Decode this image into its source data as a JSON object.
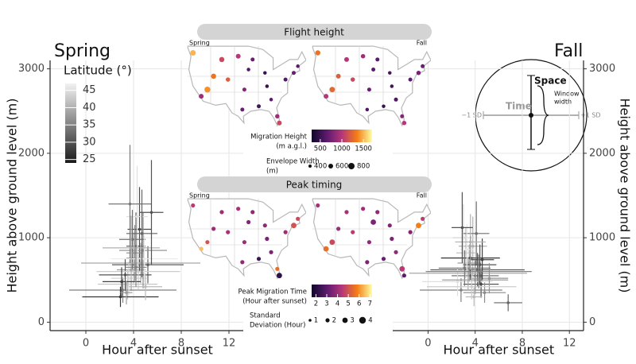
{
  "chart_data": [
    {
      "type": "scatter",
      "title": "Spring",
      "x_label": "Hour after sunset",
      "y_label": "Height above ground level (m)",
      "y_axis_side": "left",
      "xlim": [
        -3,
        13.2
      ],
      "ylim": [
        -100,
        3100
      ],
      "xticks": [
        0,
        4,
        8,
        12
      ],
      "yticks": [
        0,
        1000,
        2000,
        3000
      ],
      "grid": true,
      "x": [
        3.8,
        4.2,
        3.5,
        4.5,
        3.1,
        4.0,
        5.2,
        3.6,
        4.8,
        2.9,
        4.3,
        3.9,
        4.6,
        3.3,
        5.0,
        4.1,
        3.7,
        4.4,
        3.0,
        4.9,
        3.4,
        4.7,
        3.8,
        4.2,
        5.5
      ],
      "values": [
        620,
        900,
        450,
        1100,
        380,
        760,
        680,
        520,
        850,
        300,
        1250,
        980,
        700,
        560,
        420,
        820,
        1400,
        600,
        480,
        750,
        350,
        1050,
        880,
        650,
        1300
      ],
      "x_err": [
        1.2,
        0.8,
        2.5,
        1.0,
        4.5,
        0.6,
        3.0,
        1.5,
        2.0,
        3.2,
        0.9,
        1.1,
        5.0,
        2.2,
        1.4,
        0.7,
        1.8,
        3.5,
        1.6,
        2.8,
        0.5,
        1.3,
        2.4,
        0.9,
        1.0
      ],
      "y_err": [
        250,
        400,
        180,
        500,
        150,
        300,
        220,
        200,
        450,
        120,
        600,
        350,
        240,
        190,
        160,
        330,
        700,
        210,
        170,
        280,
        140,
        520,
        380,
        230,
        620
      ],
      "latitude": [
        38,
        32,
        42,
        29,
        35,
        40,
        31,
        44,
        36,
        27,
        45,
        33,
        39,
        30,
        41,
        37,
        34,
        43,
        28,
        46,
        38,
        32,
        40,
        35,
        30
      ],
      "color_scale": {
        "lim": [
          24,
          47
        ],
        "colors": [
          "#1a1a1a",
          "#f2f2f2"
        ]
      },
      "color_legend": {
        "title": "Latitude (°)",
        "ticks": [
          25,
          30,
          35,
          40,
          45
        ]
      }
    },
    {
      "type": "scatter",
      "title": "Fall",
      "x_label": "Hour after sunset",
      "y_label": "Height above ground level (m)",
      "y_axis_side": "right",
      "xlim": [
        -3,
        13.2
      ],
      "ylim": [
        -100,
        3100
      ],
      "xticks": [
        0,
        4,
        8,
        12
      ],
      "yticks": [
        0,
        1000,
        2000,
        3000
      ],
      "grid": true,
      "x": [
        3.5,
        4.0,
        3.2,
        4.5,
        2.8,
        3.8,
        4.2,
        3.0,
        4.8,
        3.6,
        2.5,
        4.1,
        3.4,
        4.4,
        3.9,
        5.2,
        3.1,
        3.7,
        4.6,
        3.3,
        4.0,
        6.8,
        3.6,
        4.3,
        2.9
      ],
      "values": [
        700,
        550,
        820,
        450,
        380,
        900,
        620,
        1000,
        350,
        760,
        480,
        1050,
        580,
        680,
        300,
        520,
        640,
        420,
        740,
        860,
        500,
        230,
        950,
        600,
        1120
      ],
      "x_err": [
        1.0,
        2.0,
        0.8,
        1.5,
        3.5,
        1.2,
        4.0,
        0.9,
        1.8,
        2.5,
        3.0,
        1.1,
        5.0,
        1.4,
        0.7,
        1.6,
        2.2,
        3.8,
        1.0,
        0.6,
        2.8,
        1.2,
        1.3,
        4.5,
        0.9
      ],
      "y_err": [
        220,
        180,
        300,
        160,
        140,
        350,
        200,
        400,
        120,
        260,
        170,
        380,
        190,
        240,
        110,
        180,
        210,
        150,
        250,
        300,
        170,
        100,
        330,
        200,
        420
      ],
      "latitude": [
        38,
        32,
        42,
        29,
        35,
        40,
        31,
        44,
        36,
        27,
        45,
        33,
        39,
        30,
        41,
        37,
        34,
        43,
        28,
        46,
        38,
        32,
        40,
        35,
        30
      ],
      "color_scale": {
        "lim": [
          24,
          47
        ],
        "colors": [
          "#1a1a1a",
          "#f2f2f2"
        ]
      }
    }
  ],
  "maps": {
    "flight_height": {
      "title": "Flight height",
      "spring": {
        "label": "Spring",
        "lon": [
          -122,
          -118,
          -112,
          -105,
          -98,
          -97,
          -95,
          -90,
          -87,
          -84,
          -81,
          -77,
          -73,
          -71,
          -100,
          -93,
          -86,
          -80,
          -108,
          -115
        ],
        "lat": [
          47,
          34,
          40,
          39,
          30,
          36,
          42,
          31,
          41,
          33,
          28,
          39,
          41,
          43,
          46,
          45,
          37,
          26,
          45,
          36
        ],
        "values": [
          1500,
          900,
          1300,
          1200,
          700,
          800,
          600,
          550,
          500,
          650,
          900,
          600,
          700,
          650,
          1000,
          700,
          500,
          1100,
          1100,
          1400
        ],
        "sizes": [
          700,
          600,
          650,
          550,
          500,
          500,
          450,
          500,
          450,
          450,
          550,
          500,
          500,
          450,
          600,
          500,
          450,
          600,
          650,
          750
        ]
      },
      "fall": {
        "label": "Fall",
        "lon": [
          -122,
          -118,
          -112,
          -105,
          -98,
          -97,
          -95,
          -90,
          -87,
          -84,
          -81,
          -77,
          -73,
          -71,
          -100,
          -93,
          -86,
          -80,
          -108,
          -115
        ],
        "lat": [
          47,
          34,
          40,
          39,
          30,
          36,
          42,
          31,
          41,
          33,
          28,
          39,
          41,
          43,
          46,
          45,
          37,
          26,
          45,
          36
        ],
        "values": [
          1300,
          1000,
          1200,
          1100,
          600,
          700,
          650,
          500,
          550,
          600,
          800,
          650,
          750,
          700,
          900,
          650,
          550,
          1000,
          1000,
          1250
        ],
        "sizes": [
          650,
          600,
          600,
          550,
          450,
          500,
          500,
          450,
          450,
          500,
          500,
          500,
          550,
          500,
          550,
          500,
          450,
          550,
          600,
          700
        ]
      },
      "color_legend": {
        "title": [
          "Migration Height",
          "(m a.g.l.)"
        ],
        "ticks": [
          500,
          1000,
          1500
        ],
        "lim": [
          300,
          1700
        ],
        "colors": [
          "#0d0829",
          "#5c1a6e",
          "#b5367a",
          "#f57d15",
          "#fcffa4"
        ]
      },
      "size_legend": {
        "title": [
          "Envelope Width",
          "(m)"
        ],
        "values": [
          400,
          600,
          800
        ]
      }
    },
    "peak_timing": {
      "title": "Peak timing",
      "spring": {
        "label": "Spring",
        "lon": [
          -122,
          -118,
          -112,
          -105,
          -98,
          -97,
          -95,
          -90,
          -87,
          -84,
          -81,
          -77,
          -73,
          -71,
          -100,
          -93,
          -86,
          -80,
          -108,
          -115
        ],
        "lat": [
          47,
          34,
          40,
          39,
          30,
          36,
          42,
          31,
          41,
          33,
          28,
          39,
          41,
          43,
          46,
          45,
          37,
          26,
          45,
          36
        ],
        "values": [
          4.5,
          6.5,
          4.0,
          4.2,
          3.8,
          4.0,
          3.6,
          2.5,
          3.8,
          3.5,
          5.5,
          4.0,
          5.0,
          4.8,
          4.2,
          3.8,
          3.5,
          2.2,
          4.0,
          5.0
        ],
        "sizes": [
          2,
          2,
          2,
          2,
          2,
          2,
          2,
          2,
          2,
          2,
          2,
          2,
          3,
          2,
          2,
          2,
          2,
          3,
          2,
          2
        ]
      },
      "fall": {
        "label": "Fall",
        "lon": [
          -122,
          -118,
          -112,
          -105,
          -98,
          -97,
          -95,
          -90,
          -87,
          -84,
          -81,
          -77,
          -73,
          -71,
          -100,
          -93,
          -86,
          -80,
          -108,
          -115
        ],
        "lat": [
          47,
          34,
          40,
          39,
          30,
          36,
          42,
          31,
          41,
          33,
          28,
          39,
          41,
          43,
          46,
          45,
          37,
          26,
          45,
          36
        ],
        "values": [
          4.2,
          5.5,
          4.0,
          4.5,
          3.5,
          3.8,
          3.5,
          3.2,
          3.6,
          3.8,
          4.5,
          3.6,
          5.8,
          4.5,
          4.0,
          3.8,
          3.5,
          3.0,
          4.2,
          4.8
        ],
        "sizes": [
          2,
          3,
          2,
          2,
          2,
          2,
          3,
          2,
          2,
          2,
          3,
          2,
          3,
          2,
          2,
          2,
          2,
          2,
          2,
          3
        ]
      },
      "color_legend": {
        "title": [
          "Peak Migration Time",
          "(Hour after sunset)"
        ],
        "ticks": [
          2,
          3,
          4,
          5,
          6,
          7
        ],
        "lim": [
          1.6,
          7.2
        ],
        "colors": [
          "#0d0829",
          "#5c1a6e",
          "#b5367a",
          "#f57d15",
          "#fcffa4"
        ]
      },
      "size_legend": {
        "title": [
          "Standard",
          "Deviation (Hour)"
        ],
        "values": [
          1,
          2,
          3,
          4
        ]
      }
    }
  },
  "inset": {
    "space": "Space",
    "window": [
      "Window",
      "width"
    ],
    "time": "Time",
    "minus": "−1 SD",
    "plus": "+1 SD"
  }
}
